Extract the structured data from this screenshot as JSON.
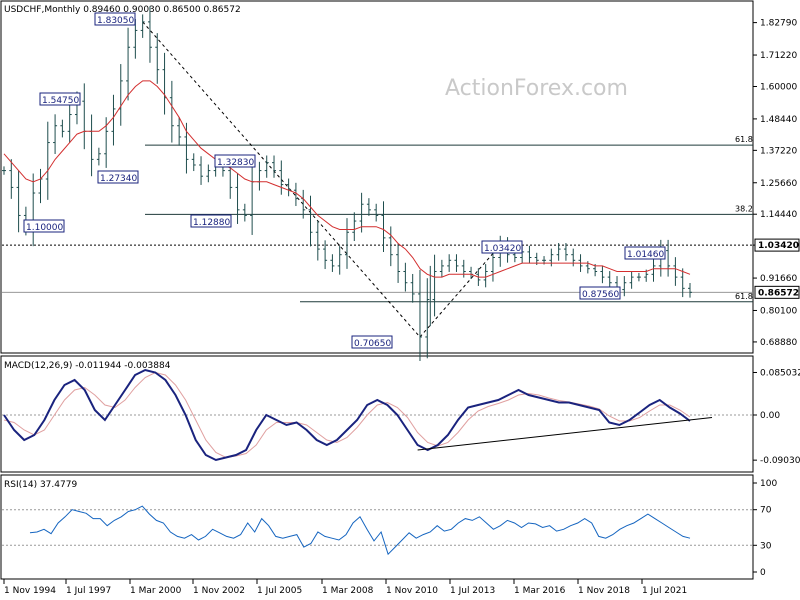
{
  "chart_data": [
    {
      "type": "candlestick",
      "header": "USDCHF,Monthly  0.89460 0.90030 0.86500 0.86572",
      "watermark": "ActionForex.com",
      "y_ticks": [
        "1.82790",
        "1.71220",
        "1.60000",
        "1.48440",
        "1.37220",
        "1.25660",
        "1.14440",
        "1.03420",
        "0.91660",
        "0.80100",
        "0.68880"
      ],
      "y_tick_values": [
        1.8279,
        1.7122,
        1.6,
        1.4844,
        1.3722,
        1.2566,
        1.1444,
        1.0342,
        0.9166,
        0.801,
        0.6888
      ],
      "ylim": [
        0.66,
        1.88
      ],
      "x_labels": [
        "1 Nov 1994",
        "1 Jul 1997",
        "1 Mar 2000",
        "1 Nov 2002",
        "1 Jul 2005",
        "1 Mar 2008",
        "1 Nov 2010",
        "1 Jul 2013",
        "1 Mar 2016",
        "1 Nov 2018",
        "1 Jul 2021"
      ],
      "last_price": "0.86572",
      "highlight_price": "1.03420",
      "levels": [
        {
          "label": "1.83050",
          "value": 1.8305
        },
        {
          "label": "1.54750",
          "value": 1.5475
        },
        {
          "label": "1.27340",
          "value": 1.2734
        },
        {
          "label": "1.10000",
          "value": 1.1
        },
        {
          "label": "1.32830",
          "value": 1.3283
        },
        {
          "label": "1.12880",
          "value": 1.1288
        },
        {
          "label": "0.70650",
          "value": 0.7065
        },
        {
          "label": "1.03420",
          "value": 1.0342
        },
        {
          "label": "1.01460",
          "value": 1.0146
        },
        {
          "label": "0.87560",
          "value": 0.8756
        }
      ],
      "fib_levels": [
        {
          "label": "61.8",
          "value": 1.391
        },
        {
          "label": "38.2",
          "value": 1.144
        },
        {
          "label": "61.8",
          "value": 0.832
        }
      ],
      "price_series": [
        1.3,
        1.24,
        1.14,
        1.1,
        1.22,
        1.27,
        1.4,
        1.46,
        1.44,
        1.5,
        1.5475,
        1.44,
        1.34,
        1.36,
        1.44,
        1.52,
        1.62,
        1.74,
        1.8,
        1.8305,
        1.74,
        1.66,
        1.56,
        1.46,
        1.42,
        1.34,
        1.32,
        1.28,
        1.3,
        1.32,
        1.3,
        1.24,
        1.16,
        1.14,
        1.26,
        1.3,
        1.3283,
        1.3,
        1.25,
        1.23,
        1.2,
        1.16,
        1.08,
        1.02,
        0.98,
        0.96,
        1.0,
        1.08,
        1.12,
        1.18,
        1.16,
        1.14,
        1.06,
        1.0,
        0.94,
        0.9,
        0.86,
        0.7065,
        0.84,
        0.94,
        0.96,
        0.98,
        0.96,
        0.94,
        0.93,
        0.91,
        0.94,
        0.99,
        1.0342,
        1.0,
        0.99,
        1.01,
        0.99,
        0.98,
        0.98,
        1.0,
        1.02,
        1.0,
        0.98,
        0.96,
        0.95,
        0.94,
        0.92,
        0.9,
        0.8756,
        0.9,
        0.92,
        0.92,
        0.93,
        0.96,
        1.0146,
        0.96,
        0.92,
        0.88,
        0.86572
      ],
      "ma_series": [
        1.36,
        1.33,
        1.3,
        1.27,
        1.26,
        1.27,
        1.3,
        1.34,
        1.37,
        1.4,
        1.43,
        1.44,
        1.44,
        1.44,
        1.46,
        1.49,
        1.53,
        1.57,
        1.6,
        1.62,
        1.62,
        1.6,
        1.57,
        1.53,
        1.49,
        1.44,
        1.41,
        1.38,
        1.36,
        1.34,
        1.32,
        1.31,
        1.29,
        1.27,
        1.26,
        1.26,
        1.26,
        1.25,
        1.24,
        1.23,
        1.22,
        1.2,
        1.17,
        1.14,
        1.12,
        1.1,
        1.09,
        1.09,
        1.09,
        1.1,
        1.1,
        1.1,
        1.09,
        1.07,
        1.04,
        1.02,
        0.99,
        0.95,
        0.93,
        0.92,
        0.92,
        0.93,
        0.93,
        0.93,
        0.93,
        0.92,
        0.92,
        0.93,
        0.94,
        0.95,
        0.96,
        0.97,
        0.97,
        0.97,
        0.97,
        0.97,
        0.97,
        0.97,
        0.97,
        0.97,
        0.97,
        0.96,
        0.96,
        0.95,
        0.94,
        0.94,
        0.94,
        0.94,
        0.94,
        0.95,
        0.95,
        0.95,
        0.95,
        0.94,
        0.93
      ]
    },
    {
      "type": "line",
      "header": "MACD(12,26,9) -0.011944 -0.003884",
      "y_ticks": [
        "0.085032",
        "0.00",
        "-0.090302"
      ],
      "y_tick_values": [
        0.085032,
        0.0,
        -0.090302
      ],
      "ylim": [
        -0.11,
        0.11
      ],
      "series": [
        {
          "values": [
            0.0,
            -0.03,
            -0.05,
            -0.04,
            -0.01,
            0.03,
            0.06,
            0.07,
            0.05,
            0.01,
            -0.01,
            0.02,
            0.05,
            0.08,
            0.09,
            0.085,
            0.07,
            0.04,
            0.0,
            -0.05,
            -0.08,
            -0.09,
            -0.085,
            -0.08,
            -0.07,
            -0.03,
            0.0,
            -0.01,
            -0.02,
            -0.015,
            -0.03,
            -0.05,
            -0.06,
            -0.05,
            -0.03,
            -0.01,
            0.02,
            0.03,
            0.02,
            0.0,
            -0.03,
            -0.06,
            -0.07,
            -0.06,
            -0.04,
            -0.01,
            0.015,
            0.02,
            0.025,
            0.03,
            0.04,
            0.05,
            0.04,
            0.035,
            0.03,
            0.025,
            0.025,
            0.02,
            0.015,
            0.01,
            -0.015,
            -0.02,
            -0.01,
            0.005,
            0.02,
            0.03,
            0.015,
            0.003,
            -0.012
          ]
        },
        {
          "values": [
            -0.01,
            -0.015,
            -0.03,
            -0.04,
            -0.03,
            0.0,
            0.03,
            0.05,
            0.055,
            0.04,
            0.02,
            0.015,
            0.03,
            0.055,
            0.075,
            0.085,
            0.08,
            0.06,
            0.03,
            -0.01,
            -0.05,
            -0.075,
            -0.085,
            -0.082,
            -0.077,
            -0.06,
            -0.03,
            -0.015,
            -0.015,
            -0.015,
            -0.02,
            -0.035,
            -0.05,
            -0.055,
            -0.045,
            -0.025,
            0.0,
            0.02,
            0.025,
            0.015,
            -0.005,
            -0.035,
            -0.055,
            -0.062,
            -0.055,
            -0.035,
            -0.01,
            0.008,
            0.017,
            0.023,
            0.03,
            0.04,
            0.043,
            0.04,
            0.034,
            0.029,
            0.026,
            0.022,
            0.018,
            0.012,
            -0.002,
            -0.012,
            -0.012,
            -0.005,
            0.008,
            0.02,
            0.02,
            0.01,
            -0.004
          ]
        }
      ]
    },
    {
      "type": "line",
      "header": "RSI(14) 37.4779",
      "y_ticks": [
        "100",
        "70",
        "30",
        "0"
      ],
      "y_tick_values": [
        100,
        70,
        30,
        0
      ],
      "ylim": [
        0,
        100
      ],
      "series": [
        {
          "values": [
            44,
            45,
            48,
            43,
            55,
            62,
            70,
            68,
            66,
            60,
            60,
            52,
            58,
            62,
            68,
            70,
            74,
            65,
            58,
            55,
            45,
            40,
            38,
            42,
            36,
            40,
            48,
            44,
            40,
            38,
            42,
            55,
            45,
            60,
            52,
            40,
            38,
            40,
            42,
            28,
            32,
            45,
            40,
            38,
            36,
            42,
            55,
            62,
            48,
            35,
            45,
            20,
            28,
            36,
            44,
            38,
            42,
            45,
            52,
            46,
            48,
            55,
            60,
            58,
            62,
            55,
            48,
            52,
            58,
            55,
            50,
            55,
            54,
            50,
            52,
            46,
            48,
            52,
            55,
            60,
            55,
            40,
            38,
            42,
            48,
            52,
            55,
            60,
            65,
            60,
            55,
            50,
            45,
            40,
            38
          ]
        }
      ]
    }
  ]
}
